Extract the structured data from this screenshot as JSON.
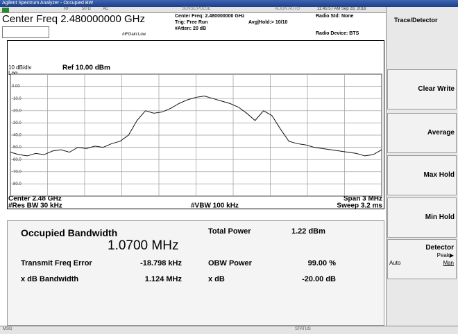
{
  "title_bar": "Agilent Spectrum Analyzer - Occupied BW",
  "status_line": {
    "rf": "RF",
    "impedance": "50 Ω",
    "coupling": "AC",
    "sense": "SENSE:PULSE",
    "align": "ALIGN AUTO",
    "timestamp": "11:45:57 AM Sep 28, 2016"
  },
  "header": {
    "center_freq": "Center Freq 2.480000000 GHz",
    "if_gain": "#IFGain:Low",
    "center_freq_detail": "Center Freq: 2.480000000 GHz",
    "trig": "Trig: Free Run",
    "avg_hold": "Avg|Hold:> 10/10",
    "atten": "#Atten: 20 dB",
    "radio_std": "Radio Std: None",
    "radio_device": "Radio Device: BTS"
  },
  "chart_data": {
    "type": "line",
    "scale": "10 dB/div",
    "ref_level": "Ref 10.00 dBm",
    "scale_type": "Log",
    "ylim": [
      -90,
      10
    ],
    "yticks": [
      {
        "value": 0,
        "label": "0.00"
      },
      {
        "value": -10,
        "label": "-10.0"
      },
      {
        "value": -20,
        "label": "-20.0"
      },
      {
        "value": -30,
        "label": "-30.0"
      },
      {
        "value": -40,
        "label": "-40.0"
      },
      {
        "value": -50,
        "label": "-50.0"
      },
      {
        "value": -60,
        "label": "-60.0"
      },
      {
        "value": -70,
        "label": "-70.0"
      },
      {
        "value": -80,
        "label": "-80.0"
      }
    ],
    "grid": true,
    "color": "#111111",
    "values": [
      -54,
      -56,
      -57,
      -55,
      -56,
      -53,
      -52,
      -54,
      -50,
      -51,
      -49,
      -50,
      -47,
      -45,
      -40,
      -28,
      -20,
      -22,
      -21,
      -18,
      -14,
      -11,
      -9,
      -8,
      -10,
      -12,
      -14,
      -17,
      -22,
      -28,
      -20,
      -24,
      -35,
      -45,
      -47,
      -48,
      -50,
      -51,
      -52,
      -53,
      -54,
      -55,
      -57,
      -56,
      -52
    ],
    "footer": {
      "center": "Center 2.48 GHz",
      "res_bw": "#Res BW 30 kHz",
      "vbw": "#VBW 100 kHz",
      "span": "Span 3 MHz",
      "sweep": "Sweep 3.2 ms"
    }
  },
  "softkeys": {
    "menu_title": "Trace/Detector",
    "keys": [
      "Clear Write",
      "Average",
      "Max Hold",
      "Min Hold"
    ],
    "detector": {
      "label": "Detector",
      "value": "Peak▶",
      "auto": "Auto",
      "man": "Man"
    }
  },
  "results": {
    "occupied_bandwidth": {
      "label": "Occupied Bandwidth",
      "value": "1.0700 MHz"
    },
    "total_power": {
      "label": "Total Power",
      "value": "1.22 dBm"
    },
    "transmit_freq_error": {
      "label": "Transmit Freq Error",
      "value": "-18.798 kHz"
    },
    "obw_power": {
      "label": "OBW Power",
      "value": "99.00 %"
    },
    "x_db_bandwidth": {
      "label": "x dB Bandwidth",
      "value": "1.124 MHz"
    },
    "x_db": {
      "label": "x dB",
      "value": "-20.00 dB"
    }
  },
  "bottom_bar": {
    "msg": "MSG",
    "status": "STATUS"
  }
}
